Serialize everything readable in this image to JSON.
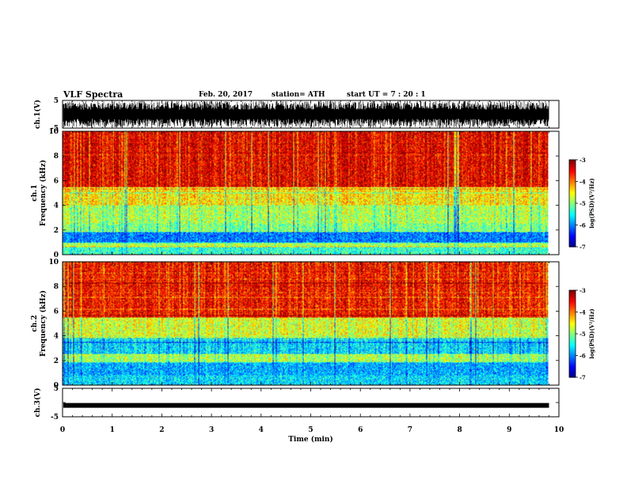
{
  "header": {
    "title": "VLF Spectra",
    "date": "Feb. 20, 2017",
    "station": "station= ATH",
    "start": "start  UT  =   7 : 20 : 1"
  },
  "chart_data": [
    {
      "type": "line",
      "panel": "ch1-waveform",
      "ylabel": "ch.1(V)",
      "ylim": [
        -5,
        5
      ],
      "yticks": [
        -5,
        5
      ],
      "xlim": [
        0,
        10
      ],
      "series": [
        {
          "envelope": [
            -4.8,
            4.8
          ],
          "data_end_min": 9.8
        }
      ],
      "color": "#000000"
    },
    {
      "type": "heatmap",
      "panel": "ch1-spectrogram",
      "ylabel": [
        "ch.1",
        "Frequency (kHz)"
      ],
      "ylim": [
        0,
        10
      ],
      "yticks": [
        0,
        2,
        4,
        6,
        8,
        10
      ],
      "xlim": [
        0,
        10
      ],
      "data_end_min": 9.8,
      "bands": [
        [
          0,
          0.6,
          -5.3
        ],
        [
          0.6,
          1.0,
          -4.8
        ],
        [
          1.0,
          1.8,
          -6.0
        ],
        [
          1.8,
          2.5,
          -5.0
        ],
        [
          2.5,
          4.0,
          -4.8
        ],
        [
          4.0,
          5.5,
          -4.4
        ],
        [
          5.5,
          10,
          -3.4
        ]
      ],
      "colorbar": {
        "label": "log(PSD)(V²/Hz)",
        "range": [
          -7,
          -3
        ],
        "ticks": [
          -3,
          -4,
          -5,
          -6,
          -7
        ]
      }
    },
    {
      "type": "heatmap",
      "panel": "ch2-spectrogram",
      "ylabel": [
        "ch.2",
        "Frequency (kHz)"
      ],
      "ylim": [
        0,
        10
      ],
      "yticks": [
        0,
        2,
        4,
        6,
        8,
        10
      ],
      "xlim": [
        0,
        10
      ],
      "data_end_min": 9.8,
      "bands": [
        [
          0,
          0.8,
          -5.6
        ],
        [
          0.8,
          1.8,
          -5.8
        ],
        [
          1.8,
          2.5,
          -4.8
        ],
        [
          2.5,
          3.8,
          -5.6
        ],
        [
          3.8,
          5.5,
          -4.6
        ],
        [
          5.5,
          10,
          -3.5
        ]
      ],
      "colorbar": {
        "label": "log(PSD)(V²/Hz)",
        "range": [
          -7,
          -3
        ],
        "ticks": [
          -3,
          -4,
          -5,
          -6,
          -7
        ]
      }
    },
    {
      "type": "line",
      "panel": "ch3-waveform",
      "ylabel": "ch.3(V)",
      "ylim": [
        -5,
        5
      ],
      "yticks": [
        -5,
        0,
        5
      ],
      "ytick_labels": [
        "-5",
        "",
        "5"
      ],
      "xlim": [
        0,
        10
      ],
      "series": [
        {
          "level": -1,
          "data_end_min": 9.8
        }
      ],
      "xlabel": "Time (min)",
      "xticks": [
        0,
        1,
        2,
        3,
        4,
        5,
        6,
        7,
        8,
        9,
        10
      ],
      "color": "#000000"
    }
  ]
}
